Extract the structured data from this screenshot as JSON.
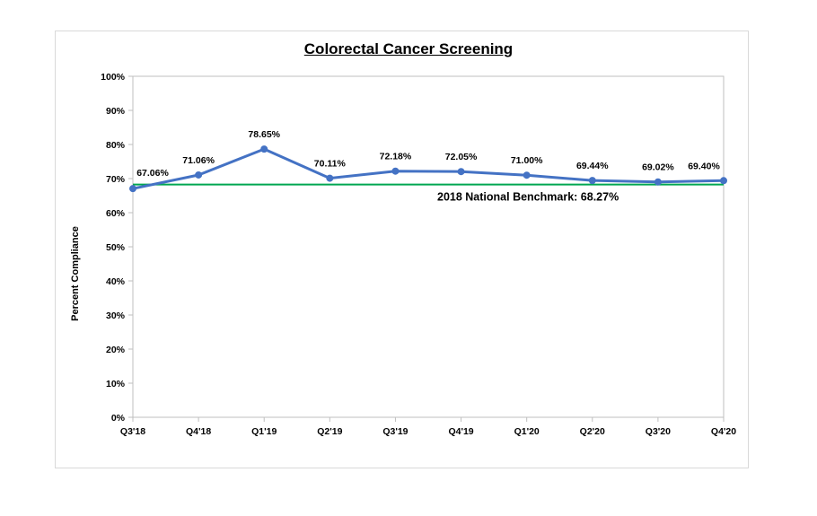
{
  "chart_data": {
    "type": "line",
    "title": "Colorectal Cancer Screening",
    "xlabel": "",
    "ylabel": "Percent Compliance",
    "ylim": [
      0,
      100
    ],
    "yticks": [
      "0%",
      "10%",
      "20%",
      "30%",
      "40%",
      "50%",
      "60%",
      "70%",
      "80%",
      "90%",
      "100%"
    ],
    "categories": [
      "Q3'18",
      "Q4'18",
      "Q1'19",
      "Q2'19",
      "Q3'19",
      "Q4'19",
      "Q1'20",
      "Q2'20",
      "Q3'20",
      "Q4'20"
    ],
    "series": [
      {
        "values": [
          67.06,
          71.06,
          78.65,
          70.11,
          72.18,
          72.05,
          71.0,
          69.44,
          69.02,
          69.4
        ],
        "labels": [
          "67.06%",
          "71.06%",
          "78.65%",
          "70.11%",
          "72.18%",
          "72.05%",
          "71.00%",
          "69.44%",
          "69.02%",
          "69.40%"
        ],
        "color": "#4472c4"
      }
    ],
    "benchmark": {
      "label": "2018  National Benchmark: 68.27%",
      "value": 68.27,
      "color": "#00a651"
    },
    "grid": false
  }
}
